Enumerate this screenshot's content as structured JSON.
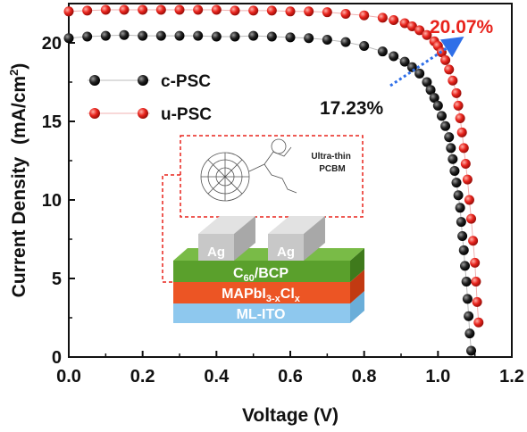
{
  "chart_data": {
    "type": "scatter",
    "xlabel": "Voltage (V)",
    "ylabel": "Current Density",
    "ylabel_unit": "(mA/cm",
    "ylabel_unit_sup": "2",
    "ylabel_unit_close": ")",
    "xlim": [
      0.0,
      1.2
    ],
    "ylim": [
      0,
      22.5
    ],
    "x_ticks": [
      "0.0",
      "0.2",
      "0.4",
      "0.6",
      "0.8",
      "1.0",
      "1.2"
    ],
    "y_ticks": [
      "0",
      "5",
      "10",
      "15",
      "20"
    ],
    "legend_position": "upper-left",
    "grid": false,
    "series": [
      {
        "name": "c-PSC",
        "color": "#111111",
        "points": [
          [
            0.0,
            20.3
          ],
          [
            0.05,
            20.4
          ],
          [
            0.1,
            20.45
          ],
          [
            0.15,
            20.5
          ],
          [
            0.2,
            20.45
          ],
          [
            0.25,
            20.45
          ],
          [
            0.3,
            20.45
          ],
          [
            0.35,
            20.45
          ],
          [
            0.4,
            20.4
          ],
          [
            0.45,
            20.4
          ],
          [
            0.5,
            20.45
          ],
          [
            0.55,
            20.4
          ],
          [
            0.6,
            20.35
          ],
          [
            0.65,
            20.3
          ],
          [
            0.7,
            20.2
          ],
          [
            0.75,
            20.05
          ],
          [
            0.8,
            19.8
          ],
          [
            0.85,
            19.45
          ],
          [
            0.88,
            19.15
          ],
          [
            0.91,
            18.8
          ],
          [
            0.93,
            18.45
          ],
          [
            0.95,
            18.05
          ],
          [
            0.97,
            17.5
          ],
          [
            0.98,
            17.0
          ],
          [
            0.99,
            16.5
          ],
          [
            1.0,
            16.0
          ],
          [
            1.01,
            15.35
          ],
          [
            1.02,
            14.7
          ],
          [
            1.03,
            14.0
          ],
          [
            1.035,
            13.3
          ],
          [
            1.04,
            12.6
          ],
          [
            1.045,
            11.85
          ],
          [
            1.05,
            11.1
          ],
          [
            1.055,
            10.3
          ],
          [
            1.06,
            9.5
          ],
          [
            1.063,
            8.6
          ],
          [
            1.066,
            7.7
          ],
          [
            1.07,
            6.8
          ],
          [
            1.073,
            5.8
          ],
          [
            1.077,
            4.8
          ],
          [
            1.08,
            3.7
          ],
          [
            1.083,
            2.6
          ],
          [
            1.086,
            1.5
          ],
          [
            1.09,
            0.4
          ]
        ]
      },
      {
        "name": "u-PSC",
        "color": "#e8231c",
        "points": [
          [
            0.0,
            22.0
          ],
          [
            0.05,
            22.05
          ],
          [
            0.1,
            22.1
          ],
          [
            0.15,
            22.1
          ],
          [
            0.2,
            22.1
          ],
          [
            0.25,
            22.1
          ],
          [
            0.3,
            22.1
          ],
          [
            0.35,
            22.1
          ],
          [
            0.4,
            22.1
          ],
          [
            0.45,
            22.05
          ],
          [
            0.5,
            22.05
          ],
          [
            0.55,
            22.05
          ],
          [
            0.6,
            22.0
          ],
          [
            0.65,
            22.0
          ],
          [
            0.7,
            21.95
          ],
          [
            0.75,
            21.85
          ],
          [
            0.8,
            21.75
          ],
          [
            0.85,
            21.6
          ],
          [
            0.88,
            21.45
          ],
          [
            0.91,
            21.25
          ],
          [
            0.93,
            21.05
          ],
          [
            0.95,
            20.8
          ],
          [
            0.97,
            20.5
          ],
          [
            0.99,
            20.1
          ],
          [
            1.0,
            19.8
          ],
          [
            1.01,
            19.4
          ],
          [
            1.02,
            18.9
          ],
          [
            1.03,
            18.3
          ],
          [
            1.04,
            17.6
          ],
          [
            1.05,
            16.8
          ],
          [
            1.055,
            16.0
          ],
          [
            1.06,
            15.2
          ],
          [
            1.065,
            14.3
          ],
          [
            1.07,
            13.3
          ],
          [
            1.075,
            12.3
          ],
          [
            1.08,
            11.3
          ],
          [
            1.085,
            10.0
          ],
          [
            1.09,
            8.8
          ],
          [
            1.095,
            7.4
          ],
          [
            1.1,
            6.0
          ],
          [
            1.103,
            4.8
          ],
          [
            1.106,
            3.5
          ],
          [
            1.11,
            2.2
          ]
        ]
      }
    ],
    "annotations": {
      "c_pce": "17.23%",
      "u_pce": "20.07%",
      "inset": {
        "layer_label": "Ultra-thin\nPCBM",
        "ag_left": "Ag",
        "ag_right": "Ag",
        "c60_main": "C",
        "c60_sub": "60",
        "c60_rest": "/BCP",
        "perov_main": "MAPbI",
        "perov_sub1": "3-x",
        "perov_mid": "Cl",
        "perov_sub2": "x",
        "ito": "ML-ITO"
      }
    }
  },
  "colors": {
    "c_series": "#111111",
    "u_series": "#e8231c",
    "arrow": "#2f6fe8",
    "ag_layer": "#c8c8c8",
    "c60_layer": "#5aa02c",
    "perovskite_layer": "#ec5524",
    "ito_layer": "#8ec8ee",
    "inset_border": "#e8231c"
  }
}
